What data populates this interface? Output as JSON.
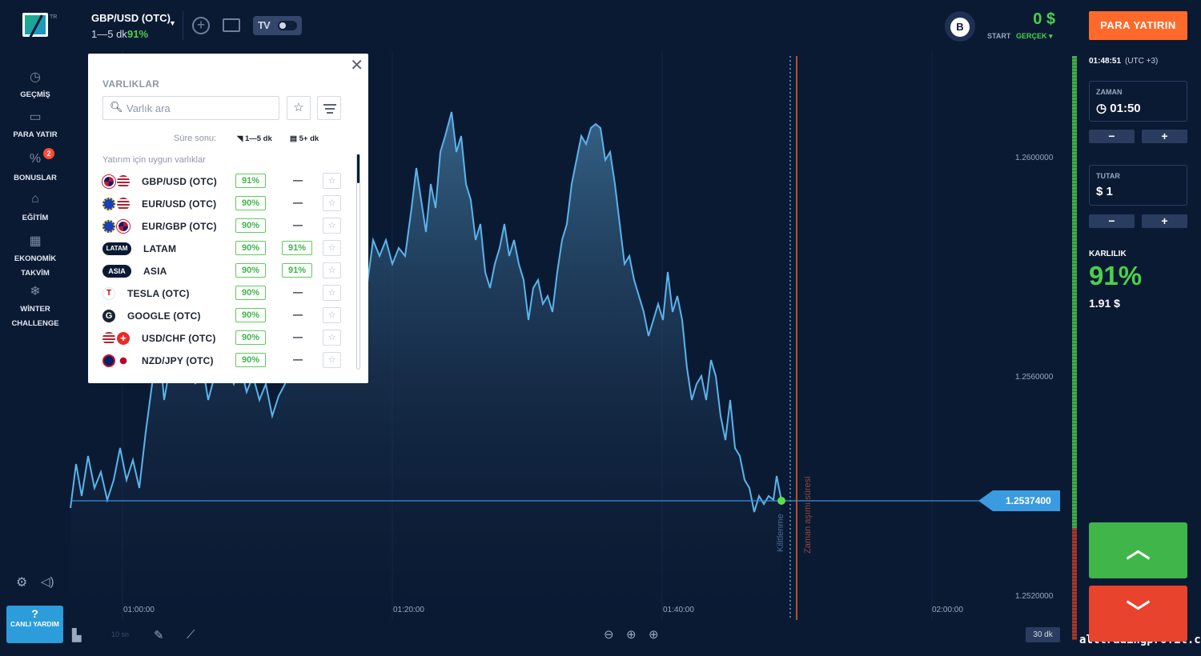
{
  "header": {
    "logo_tag": "TR",
    "asset_name": "GBP/USD (OTC)",
    "asset_expiry": "1—5 dk",
    "asset_profit": "91%",
    "bonus_letter": "B",
    "balance": "0 $",
    "account_type_label": "START",
    "account_mode": "GERÇEK",
    "deposit_button": "PARA YATIRIN"
  },
  "sidebar": {
    "items": [
      {
        "label": "GEÇMİŞ",
        "icon": "history-icon"
      },
      {
        "label": "PARA YATIR",
        "icon": "wallet-icon"
      },
      {
        "label": "BONUSLAR",
        "icon": "bonus-icon",
        "badge": "2"
      },
      {
        "label": "EĞİTİM",
        "icon": "education-icon"
      },
      {
        "label": "EKONOMİK TAKVİM",
        "icon": "calendar-icon"
      },
      {
        "label": "WİNTER CHALLENGE",
        "icon": "challenge-icon"
      }
    ],
    "help_label": "CANLI YARDIM",
    "help_icon": "?"
  },
  "chart": {
    "current_price": "1.2537400",
    "price_ticks": [
      "1.2600000",
      "1.2560000",
      "1.2520000"
    ],
    "time_ticks": [
      "01:00:00",
      "01:20:00",
      "01:40:00",
      "02:00:00"
    ],
    "lock_label": "Kilitlenme",
    "expiry_label": "Zaman aşımı süresi",
    "interval_label": "10 sn",
    "timeframe_button": "30 dk"
  },
  "trade_panel": {
    "clock": "01:48:51",
    "timezone": "(UTC +3)",
    "time_label": "ZAMAN",
    "time_value": "01:50",
    "amount_label": "TUTAR",
    "amount_value": "$ 1",
    "minus": "−",
    "plus": "+",
    "profit_label": "KARLILIK",
    "profit_pct": "91%",
    "profit_amount": "1.91 $",
    "colors": {
      "up": "#3fb54a",
      "down": "#e8432d",
      "accent": "#ff6a2b"
    }
  },
  "modal": {
    "title": "VARLIKLAR",
    "search_placeholder": "Varlık ara",
    "expiry_label": "Süre sonu:",
    "expiry_short": "1—5 dk",
    "expiry_long": "5+ dk",
    "section_label": "Yatırım için uygun varlıklar",
    "assets": [
      {
        "name": "GBP/USD (OTC)",
        "pct_short": "91%",
        "pct_long": "—"
      },
      {
        "name": "EUR/USD (OTC)",
        "pct_short": "90%",
        "pct_long": "—"
      },
      {
        "name": "EUR/GBP (OTC)",
        "pct_short": "90%",
        "pct_long": "—"
      },
      {
        "name": "LATAM",
        "tag": "LATAM",
        "pct_short": "90%",
        "pct_long": "91%"
      },
      {
        "name": "ASIA",
        "tag": "ASIA",
        "pct_short": "90%",
        "pct_long": "91%"
      },
      {
        "name": "TESLA (OTC)",
        "pct_short": "90%",
        "pct_long": "—"
      },
      {
        "name": "GOOGLE (OTC)",
        "pct_short": "90%",
        "pct_long": "—"
      },
      {
        "name": "USD/CHF (OTC)",
        "pct_short": "90%",
        "pct_long": "—"
      },
      {
        "name": "NZD/JPY (OTC)",
        "pct_short": "90%",
        "pct_long": "—"
      }
    ]
  },
  "watermark": "alltradingprofit.com"
}
